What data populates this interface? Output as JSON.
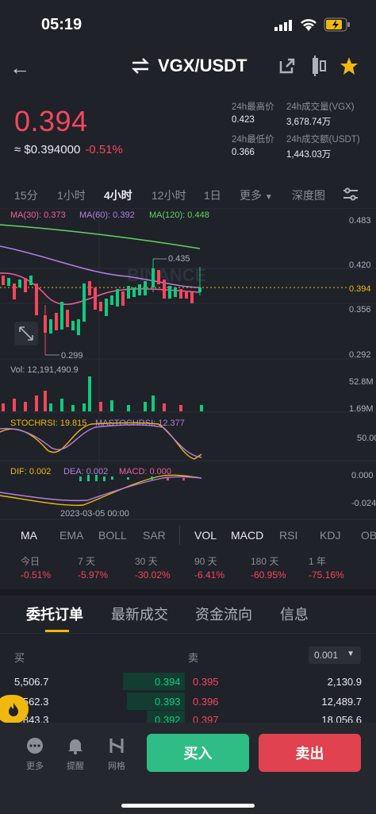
{
  "status": {
    "time": "05:19"
  },
  "header": {
    "pair": "VGX/USDT"
  },
  "price": {
    "last": "0.394",
    "usd": "≈ $0.394000",
    "change": "-0.51%"
  },
  "stats": {
    "high_label": "24h最高价",
    "high": "0.423",
    "low_label": "24h最低价",
    "low": "0.366",
    "vol_label": "24h成交量(VGX)",
    "vol": "3,678.74万",
    "amt_label": "24h成交额(USDT)",
    "amt": "1,443.03万"
  },
  "timeframes": [
    "15分",
    "1小时",
    "4小时",
    "12小时",
    "1日",
    "更多",
    "深度图"
  ],
  "chart": {
    "ma30": "MA(30): 0.373",
    "ma60": "MA(60): 0.392",
    "ma120": "MA(120): 0.448",
    "axis": [
      "0.483",
      "0.420",
      "0.394",
      "0.356",
      "0.292"
    ],
    "hi_label": "0.435",
    "lo_label": "0.299",
    "vol_label": "Vol: 12,191,490.9",
    "vol_axis": [
      "52.8M",
      "1.69M"
    ],
    "stoch": "STOCHRSI: 19.815",
    "mastoch": "MASTOCHRSI: 12.377",
    "stoch_axis": "50.00",
    "dif": "DIF: 0.002",
    "dea": "DEA: 0.002",
    "macd": "MACD: 0.000",
    "macd_axis": [
      "0.000",
      "-0.024"
    ],
    "date": "2023-03-05 00:00",
    "watermark": "BINANCE"
  },
  "indicators": [
    "MA",
    "EMA",
    "BOLL",
    "SAR",
    "VOL",
    "MACD",
    "RSI",
    "KDJ",
    "OB"
  ],
  "performance": [
    {
      "label": "今日",
      "value": "-0.51%"
    },
    {
      "label": "7 天",
      "value": "-5.97%"
    },
    {
      "label": "30 天",
      "value": "-30.02%"
    },
    {
      "label": "90 天",
      "value": "-6.41%"
    },
    {
      "label": "180 天",
      "value": "-60.95%"
    },
    {
      "label": "1 年",
      "value": "-75.16%"
    }
  ],
  "sections": [
    "委托订单",
    "最新成交",
    "资金流向",
    "信息"
  ],
  "orderbook": {
    "buy_label": "买",
    "sell_label": "卖",
    "precision": "0.001",
    "rows": [
      {
        "bid_qty": "5,506.7",
        "bid": "0.394",
        "ask": "0.395",
        "ask_qty": "2,130.9"
      },
      {
        "bid_qty": "5,562.3",
        "bid": "0.393",
        "ask": "0.396",
        "ask_qty": "12,489.7"
      },
      {
        "bid_qty": "2,843.3",
        "bid": "0.392",
        "ask": "0.397",
        "ask_qty": "18,056.6"
      }
    ]
  },
  "bottom": {
    "more": "更多",
    "alert": "提醒",
    "grid": "网格",
    "buy": "买入",
    "sell": "卖出"
  },
  "colors": {
    "up": "#0ecb81",
    "down": "#f6465d",
    "accent": "#f0b90b"
  }
}
